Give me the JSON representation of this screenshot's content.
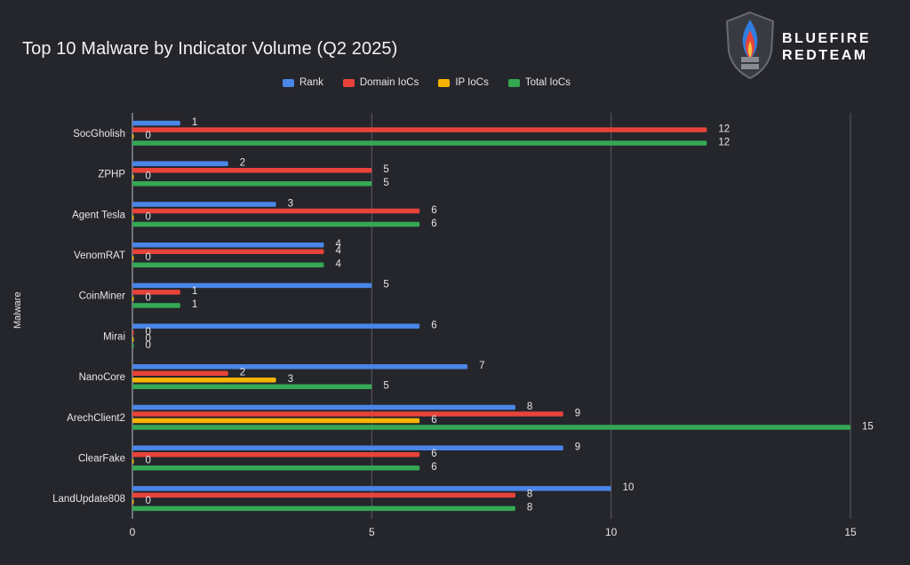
{
  "colors": {
    "background": "#25262c",
    "grid": "#5a5c64",
    "text": "#e6e6e6"
  },
  "logo": {
    "line1": "BLUEFIRE",
    "line2": "REDTEAM",
    "icon": "flame-shield-icon"
  },
  "chart_data": {
    "type": "bar",
    "orientation": "horizontal",
    "title": "Top 10 Malware by Indicator Volume (Q2 2025)",
    "xlabel": "",
    "ylabel": "Malware",
    "xlim": [
      0,
      15
    ],
    "xticks": [
      0,
      5,
      10,
      15
    ],
    "grid": true,
    "legend_position": "top",
    "categories": [
      "SocGholish",
      "ZPHP",
      "Agent Tesla",
      "VenomRAT",
      "CoinMiner",
      "Mirai",
      "NanoCore",
      "ArechClient2",
      "ClearFake",
      "LandUpdate808"
    ],
    "series": [
      {
        "name": "Rank",
        "color": "#4a86e8",
        "values": [
          1,
          2,
          3,
          4,
          5,
          6,
          7,
          8,
          9,
          10
        ]
      },
      {
        "name": "Domain IoCs",
        "color": "#e8433a",
        "values": [
          12,
          5,
          6,
          4,
          1,
          0,
          2,
          9,
          6,
          8
        ]
      },
      {
        "name": "IP IoCs",
        "color": "#f4b400",
        "values": [
          0,
          0,
          0,
          0,
          0,
          0,
          3,
          6,
          0,
          0
        ]
      },
      {
        "name": "Total IoCs",
        "color": "#34a853",
        "values": [
          12,
          5,
          6,
          4,
          1,
          0,
          5,
          15,
          6,
          8
        ]
      }
    ]
  }
}
